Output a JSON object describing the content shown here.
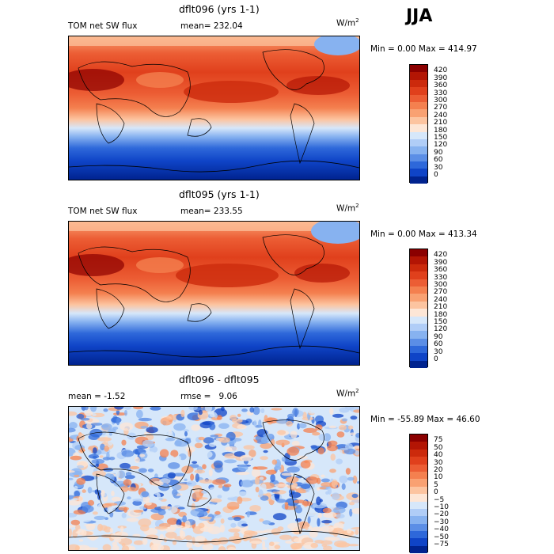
{
  "season": "JJA",
  "panels": [
    {
      "title": "dflt096 (yrs 1-1)",
      "left_label": "TOM net SW flux",
      "stat_label": "mean=",
      "stat_value": "232.04",
      "units": "W/m",
      "units_sup": "2",
      "minmax": "Min =    0.00 Max = 414.97"
    },
    {
      "title": "dflt095 (yrs 1-1)",
      "left_label": "TOM net SW flux",
      "stat_label": "mean=",
      "stat_value": "233.55",
      "units": "W/m",
      "units_sup": "2",
      "minmax": "Min =    0.00 Max = 413.34"
    },
    {
      "title": "dflt096 - dflt095",
      "left_label": "mean =   -1.52",
      "stat_label": "rmse =",
      "stat_value": "9.06",
      "units": "W/m",
      "units_sup": "2",
      "minmax": "Min = -55.89 Max =  46.60"
    }
  ],
  "chart_data": [
    {
      "type": "heatmap",
      "title": "dflt096 (yrs 1-1)",
      "variable": "TOM net SW flux",
      "units": "W/m2",
      "mean": 232.04,
      "min": 0.0,
      "max": 414.97,
      "colorbar_levels": [
        "420",
        "390",
        "360",
        "330",
        "300",
        "270",
        "240",
        "210",
        "180",
        "150",
        "120",
        "90",
        "60",
        "30",
        "0"
      ],
      "colorbar_colors": [
        "#8b0000",
        "#b31504",
        "#cc2a0c",
        "#e0401c",
        "#ec5d34",
        "#f4804f",
        "#f9a172",
        "#fcc4a0",
        "#fde6d6",
        "#d6e7fa",
        "#b0cdf7",
        "#87b2f0",
        "#5b8ee6",
        "#2e68da",
        "#0f44c7",
        "#00238f"
      ]
    },
    {
      "type": "heatmap",
      "title": "dflt095 (yrs 1-1)",
      "variable": "TOM net SW flux",
      "units": "W/m2",
      "mean": 233.55,
      "min": 0.0,
      "max": 413.34,
      "colorbar_levels": [
        "420",
        "390",
        "360",
        "330",
        "300",
        "270",
        "240",
        "210",
        "180",
        "150",
        "120",
        "90",
        "60",
        "30",
        "0"
      ],
      "colorbar_colors": [
        "#8b0000",
        "#b31504",
        "#cc2a0c",
        "#e0401c",
        "#ec5d34",
        "#f4804f",
        "#f9a172",
        "#fcc4a0",
        "#fde6d6",
        "#d6e7fa",
        "#b0cdf7",
        "#87b2f0",
        "#5b8ee6",
        "#2e68da",
        "#0f44c7",
        "#00238f"
      ]
    },
    {
      "type": "heatmap",
      "title": "dflt096 - dflt095",
      "units": "W/m2",
      "mean": -1.52,
      "rmse": 9.06,
      "min": -55.89,
      "max": 46.6,
      "colorbar_levels": [
        "75",
        "50",
        "40",
        "30",
        "20",
        "10",
        "5",
        "0",
        "−5",
        "−10",
        "−20",
        "−30",
        "−40",
        "−50",
        "−75"
      ],
      "colorbar_colors": [
        "#8b0000",
        "#b31504",
        "#cc2a0c",
        "#e0401c",
        "#ec5d34",
        "#f4804f",
        "#f9a172",
        "#fcc4a0",
        "#fde6d6",
        "#d6e7fa",
        "#b0cdf7",
        "#87b2f0",
        "#5b8ee6",
        "#2e68da",
        "#0f44c7",
        "#00238f"
      ]
    }
  ]
}
